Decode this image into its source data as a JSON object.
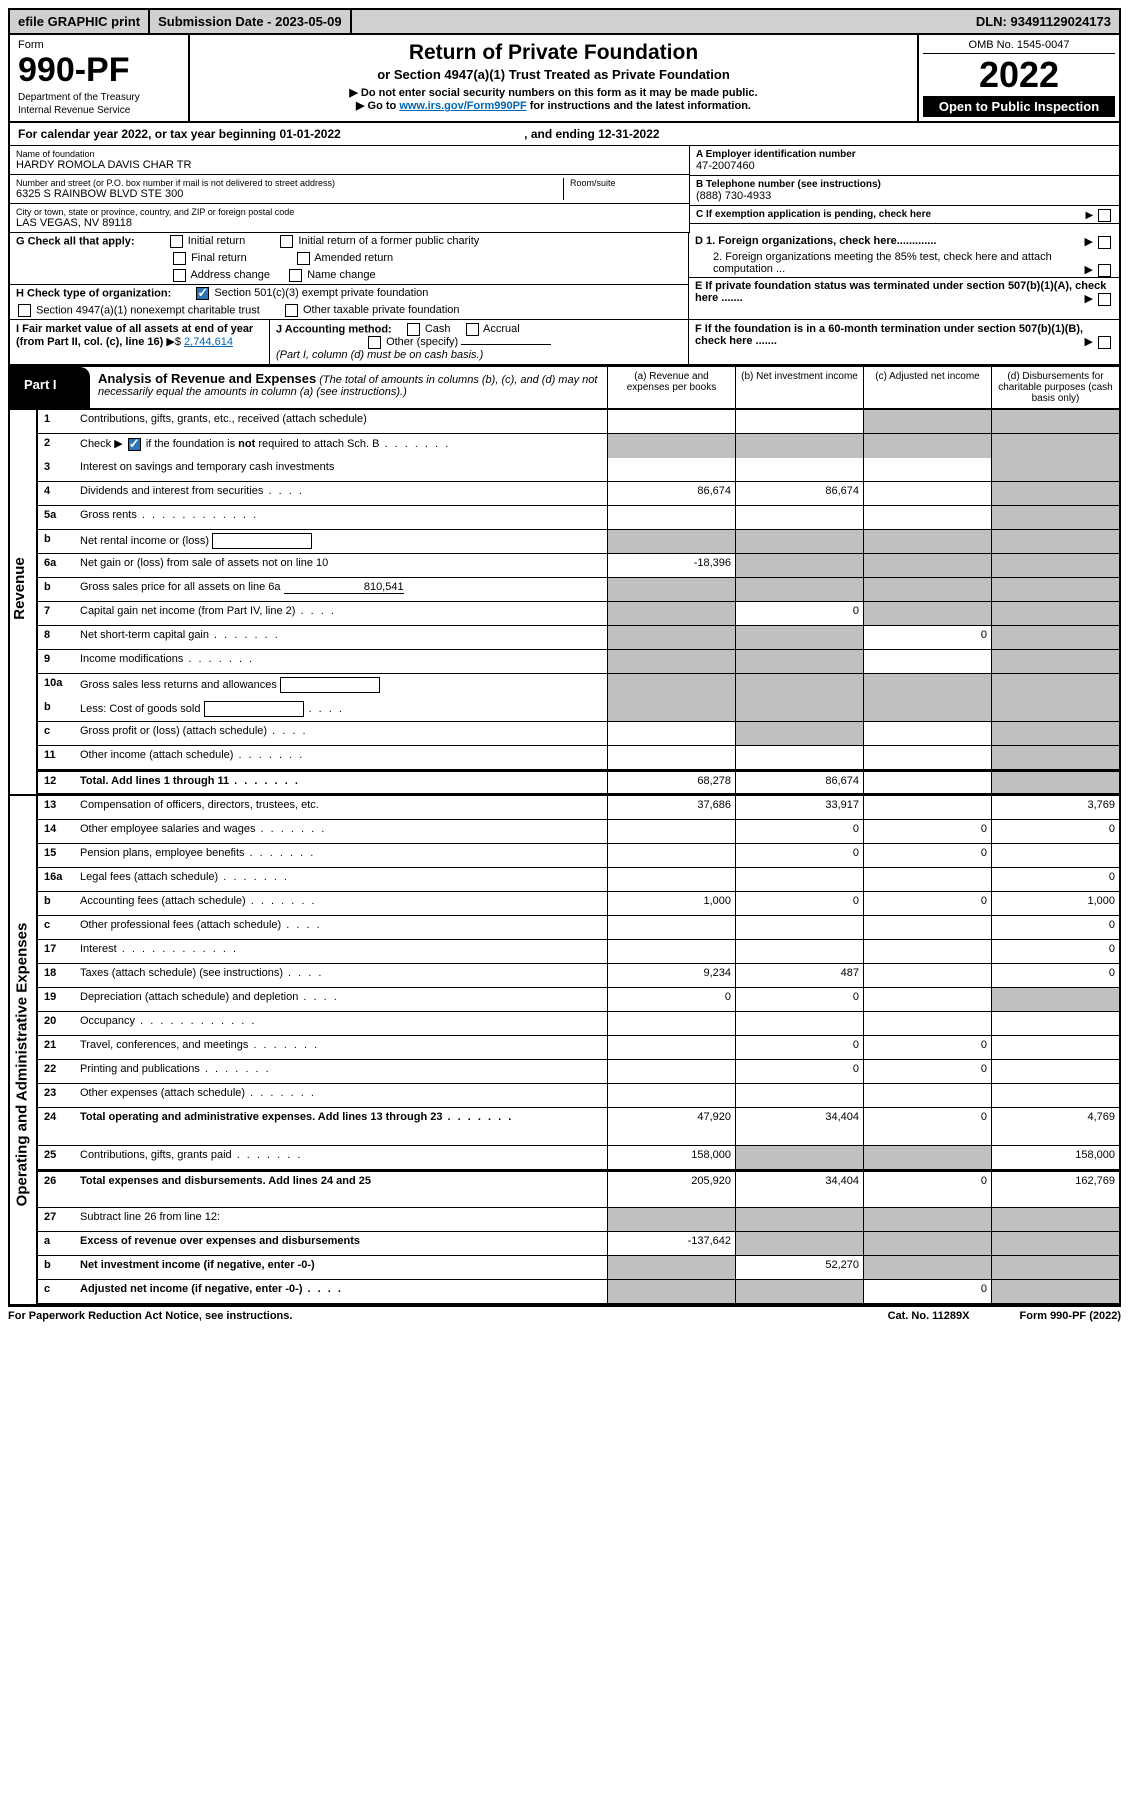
{
  "top_bar": {
    "efile": "efile GRAPHIC print",
    "submission": "Submission Date - 2023-05-09",
    "dln": "DLN: 93491129024173"
  },
  "header": {
    "form_label": "Form",
    "form_number": "990-PF",
    "dept": "Department of the Treasury",
    "irs": "Internal Revenue Service",
    "title": "Return of Private Foundation",
    "subtitle": "or Section 4947(a)(1) Trust Treated as Private Foundation",
    "note1": "▶ Do not enter social security numbers on this form as it may be made public.",
    "note2_pre": "▶ Go to ",
    "note2_link": "www.irs.gov/Form990PF",
    "note2_post": " for instructions and the latest information.",
    "omb": "OMB No. 1545-0047",
    "year": "2022",
    "open": "Open to Public Inspection"
  },
  "cal_year": "For calendar year 2022, or tax year beginning 01-01-2022",
  "cal_year_end": ", and ending 12-31-2022",
  "entity": {
    "name_label": "Name of foundation",
    "name": "HARDY ROMOLA DAVIS CHAR TR",
    "addr_label": "Number and street (or P.O. box number if mail is not delivered to street address)",
    "addr": "6325 S RAINBOW BLVD STE 300",
    "room_label": "Room/suite",
    "city_label": "City or town, state or province, country, and ZIP or foreign postal code",
    "city": "LAS VEGAS, NV  89118",
    "a_label": "A Employer identification number",
    "a_val": "47-2007460",
    "b_label": "B Telephone number (see instructions)",
    "b_val": "(888) 730-4933",
    "c_label": "C If exemption application is pending, check here",
    "d1_label": "D 1. Foreign organizations, check here.............",
    "d2_label": "2. Foreign organizations meeting the 85% test, check here and attach computation ...",
    "e_label": "E  If private foundation status was terminated under section 507(b)(1)(A), check here .......",
    "f_label": "F  If the foundation is in a 60-month termination under section 507(b)(1)(B), check here .......",
    "g_label": "G Check all that apply:",
    "g_opts": {
      "initial": "Initial return",
      "initial_former": "Initial return of a former public charity",
      "final": "Final return",
      "amended": "Amended return",
      "addr_change": "Address change",
      "name_change": "Name change"
    },
    "h_label": "H Check type of organization:",
    "h_501": "Section 501(c)(3) exempt private foundation",
    "h_4947": "Section 4947(a)(1) nonexempt charitable trust",
    "h_other": "Other taxable private foundation",
    "i_label": "I Fair market value of all assets at end of year (from Part II, col. (c), line 16)",
    "i_val": "2,744,614",
    "j_label": "J Accounting method:",
    "j_cash": "Cash",
    "j_accrual": "Accrual",
    "j_other": "Other (specify)",
    "j_note": "(Part I, column (d) must be on cash basis.)"
  },
  "part1": {
    "tab": "Part I",
    "title": "Analysis of Revenue and Expenses",
    "title_note": "(The total of amounts in columns (b), (c), and (d) may not necessarily equal the amounts in column (a) (see instructions).)",
    "col_a": "(a)   Revenue and expenses per books",
    "col_b": "(b)   Net investment income",
    "col_c": "(c)   Adjusted net income",
    "col_d": "(d)   Disbursements for charitable purposes (cash basis only)"
  },
  "side_labels": {
    "revenue": "Revenue",
    "expenses": "Operating and Administrative Expenses"
  },
  "rows": [
    {
      "ln": "1",
      "desc": "Contributions, gifts, grants, etc., received (attach schedule)",
      "a": "",
      "b": "",
      "c": "grey",
      "d": "grey"
    },
    {
      "ln": "2",
      "desc": "Check ▶ ☑ if the foundation is not required to attach Sch. B",
      "dots": "med",
      "a": "grey",
      "b": "grey",
      "c": "grey",
      "d": "grey",
      "noborder": true,
      "check2": true
    },
    {
      "ln": "3",
      "desc": "Interest on savings and temporary cash investments",
      "a": "",
      "b": "",
      "c": "",
      "d": "grey"
    },
    {
      "ln": "4",
      "desc": "Dividends and interest from securities",
      "dots": "short",
      "a": "86,674",
      "b": "86,674",
      "c": "",
      "d": "grey"
    },
    {
      "ln": "5a",
      "desc": "Gross rents",
      "dots": "long",
      "a": "",
      "b": "",
      "c": "",
      "d": "grey"
    },
    {
      "ln": "b",
      "desc": "Net rental income or (loss)",
      "inline_box": true,
      "a": "grey",
      "b": "grey",
      "c": "grey",
      "d": "grey"
    },
    {
      "ln": "6a",
      "desc": "Net gain or (loss) from sale of assets not on line 10",
      "a": "-18,396",
      "b": "grey",
      "c": "grey",
      "d": "grey"
    },
    {
      "ln": "b",
      "desc": "Gross sales price for all assets on line 6a",
      "underline": "810,541",
      "a": "grey",
      "b": "grey",
      "c": "grey",
      "d": "grey"
    },
    {
      "ln": "7",
      "desc": "Capital gain net income (from Part IV, line 2)",
      "dots": "short",
      "a": "grey",
      "b": "0",
      "c": "grey",
      "d": "grey"
    },
    {
      "ln": "8",
      "desc": "Net short-term capital gain",
      "dots": "med",
      "a": "grey",
      "b": "grey",
      "c": "0",
      "d": "grey"
    },
    {
      "ln": "9",
      "desc": "Income modifications",
      "dots": "med",
      "a": "grey",
      "b": "grey",
      "c": "",
      "d": "grey"
    },
    {
      "ln": "10a",
      "desc": "Gross sales less returns and allowances",
      "inline_box": true,
      "a": "grey",
      "b": "grey",
      "c": "grey",
      "d": "grey",
      "noborder": true
    },
    {
      "ln": "b",
      "desc": "Less: Cost of goods sold",
      "dots": "short",
      "inline_box": true,
      "a": "grey",
      "b": "grey",
      "c": "grey",
      "d": "grey"
    },
    {
      "ln": "c",
      "desc": "Gross profit or (loss) (attach schedule)",
      "dots": "short",
      "a": "",
      "b": "grey",
      "c": "",
      "d": "grey"
    },
    {
      "ln": "11",
      "desc": "Other income (attach schedule)",
      "dots": "med",
      "a": "",
      "b": "",
      "c": "",
      "d": "grey"
    },
    {
      "ln": "12",
      "desc": "Total. Add lines 1 through 11",
      "dots": "med",
      "bold": true,
      "a": "68,278",
      "b": "86,674",
      "c": "",
      "d": "grey",
      "divider": true
    }
  ],
  "rows_exp": [
    {
      "ln": "13",
      "desc": "Compensation of officers, directors, trustees, etc.",
      "a": "37,686",
      "b": "33,917",
      "c": "",
      "d": "3,769"
    },
    {
      "ln": "14",
      "desc": "Other employee salaries and wages",
      "dots": "med",
      "a": "",
      "b": "0",
      "c": "0",
      "d": "0"
    },
    {
      "ln": "15",
      "desc": "Pension plans, employee benefits",
      "dots": "med",
      "a": "",
      "b": "0",
      "c": "0",
      "d": ""
    },
    {
      "ln": "16a",
      "desc": "Legal fees (attach schedule)",
      "dots": "med",
      "a": "",
      "b": "",
      "c": "",
      "d": "0"
    },
    {
      "ln": "b",
      "desc": "Accounting fees (attach schedule)",
      "dots": "med",
      "a": "1,000",
      "b": "0",
      "c": "0",
      "d": "1,000"
    },
    {
      "ln": "c",
      "desc": "Other professional fees (attach schedule)",
      "dots": "short",
      "a": "",
      "b": "",
      "c": "",
      "d": "0"
    },
    {
      "ln": "17",
      "desc": "Interest",
      "dots": "long",
      "a": "",
      "b": "",
      "c": "",
      "d": "0"
    },
    {
      "ln": "18",
      "desc": "Taxes (attach schedule) (see instructions)",
      "dots": "short",
      "a": "9,234",
      "b": "487",
      "c": "",
      "d": "0"
    },
    {
      "ln": "19",
      "desc": "Depreciation (attach schedule) and depletion",
      "dots": "short",
      "a": "0",
      "b": "0",
      "c": "",
      "d": "grey"
    },
    {
      "ln": "20",
      "desc": "Occupancy",
      "dots": "long",
      "a": "",
      "b": "",
      "c": "",
      "d": ""
    },
    {
      "ln": "21",
      "desc": "Travel, conferences, and meetings",
      "dots": "med",
      "a": "",
      "b": "0",
      "c": "0",
      "d": ""
    },
    {
      "ln": "22",
      "desc": "Printing and publications",
      "dots": "med",
      "a": "",
      "b": "0",
      "c": "0",
      "d": ""
    },
    {
      "ln": "23",
      "desc": "Other expenses (attach schedule)",
      "dots": "med",
      "a": "",
      "b": "",
      "c": "",
      "d": ""
    },
    {
      "ln": "24",
      "desc": "Total operating and administrative expenses. Add lines 13 through 23",
      "dots": "med",
      "bold": true,
      "a": "47,920",
      "b": "34,404",
      "c": "0",
      "d": "4,769",
      "tall": true
    },
    {
      "ln": "25",
      "desc": "Contributions, gifts, grants paid",
      "dots": "med",
      "a": "158,000",
      "b": "grey",
      "c": "grey",
      "d": "158,000"
    },
    {
      "ln": "26",
      "desc": "Total expenses and disbursements. Add lines 24 and 25",
      "bold": true,
      "a": "205,920",
      "b": "34,404",
      "c": "0",
      "d": "162,769",
      "tall": true,
      "divider": true
    },
    {
      "ln": "27",
      "desc": "Subtract line 26 from line 12:",
      "a": "grey",
      "b": "grey",
      "c": "grey",
      "d": "grey"
    },
    {
      "ln": "a",
      "desc": "Excess of revenue over expenses and disbursements",
      "bold": true,
      "a": "-137,642",
      "b": "grey",
      "c": "grey",
      "d": "grey"
    },
    {
      "ln": "b",
      "desc": "Net investment income (if negative, enter -0-)",
      "bold": true,
      "a": "grey",
      "b": "52,270",
      "c": "grey",
      "d": "grey"
    },
    {
      "ln": "c",
      "desc": "Adjusted net income (if negative, enter -0-)",
      "dots": "short",
      "bold": true,
      "a": "grey",
      "b": "grey",
      "c": "0",
      "d": "grey"
    }
  ],
  "footer": {
    "left": "For Paperwork Reduction Act Notice, see instructions.",
    "mid": "Cat. No. 11289X",
    "right": "Form 990-PF (2022)"
  },
  "colors": {
    "grey": "#c0c0c0",
    "link": "#0066b3",
    "check_blue": "#2e75b6"
  }
}
